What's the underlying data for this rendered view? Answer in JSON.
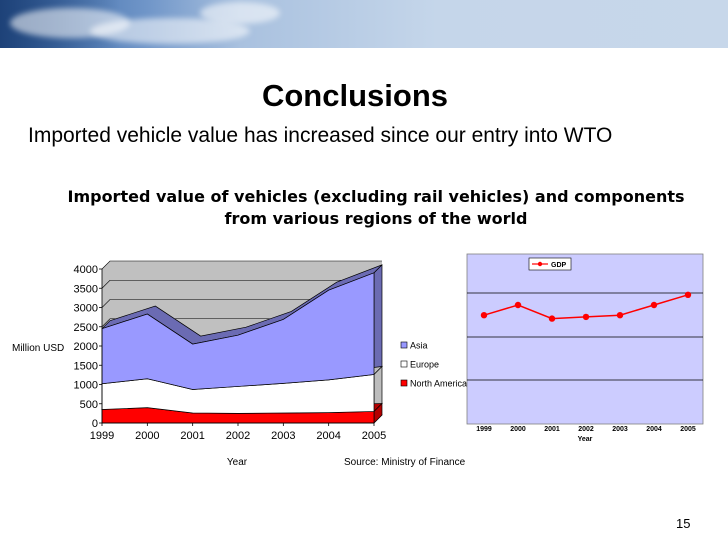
{
  "slide": {
    "title": "Conclusions",
    "subtitle": "Imported vehicle value has increased since our entry into WTO",
    "page_number": "15",
    "colors": {
      "asia": "#9999ff",
      "europe": "#ffffff",
      "north_america": "#ff0000",
      "gdp_line": "#ff0000",
      "plot_wall": "#c0c0c0",
      "gdp_plot_bg": "#ccccff"
    }
  },
  "chart_data": [
    {
      "type": "area",
      "title": "Imported value of vehicles (excluding rail vehicles) and components from various regions of the world",
      "xlabel": "Year",
      "ylabel": "Million USD",
      "source": "Source: Ministry of Finance",
      "categories": [
        "1999",
        "2000",
        "2001",
        "2002",
        "2003",
        "2004",
        "2005"
      ],
      "stacked": true,
      "series": [
        {
          "name": "North America",
          "values": [
            350,
            400,
            260,
            250,
            260,
            270,
            300
          ]
        },
        {
          "name": "Europe",
          "values": [
            670,
            750,
            610,
            700,
            770,
            850,
            960
          ]
        },
        {
          "name": "Asia",
          "values": [
            1430,
            1680,
            1180,
            1330,
            1660,
            2330,
            2640
          ]
        }
      ],
      "ylim": [
        0,
        4000
      ],
      "yticks": [
        "0",
        "500",
        "1000",
        "1500",
        "2000",
        "2500",
        "3000",
        "3500",
        "4000"
      ],
      "legend_order": [
        "Asia",
        "Europe",
        "North America"
      ],
      "legend_position": "right",
      "grid": true
    },
    {
      "type": "line",
      "categories": [
        "1999",
        "2000",
        "2001",
        "2002",
        "2003",
        "2004",
        "2005"
      ],
      "series": [
        {
          "name": "GDP",
          "values": [
            3.2,
            3.5,
            3.1,
            3.15,
            3.2,
            3.5,
            3.8
          ]
        }
      ],
      "xlabel": "Year",
      "ylim": [
        0,
        5
      ],
      "legend_position": "top",
      "grid": true
    }
  ]
}
